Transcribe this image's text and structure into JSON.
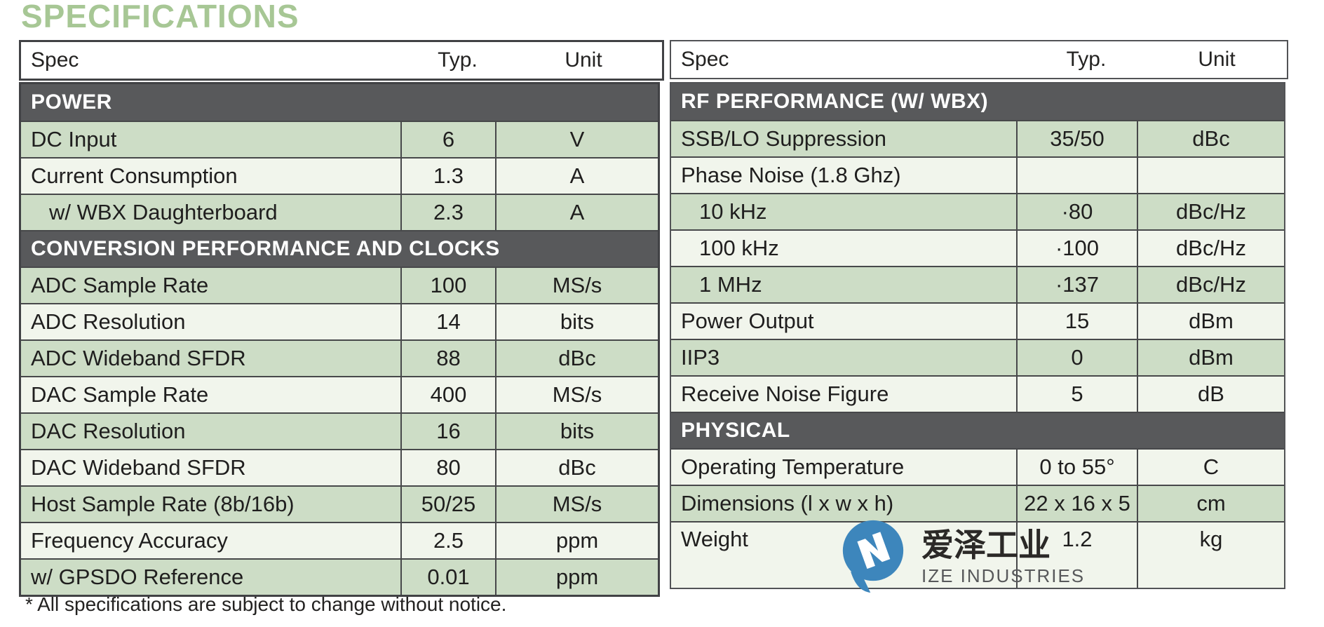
{
  "title": "SPECIFICATIONS",
  "columns": [
    "Spec",
    "Typ.",
    "Unit"
  ],
  "footnote": "* All specifications are subject to change without notice.",
  "colors": {
    "title_green": "#a7c795",
    "row_green": "#cdddc6",
    "row_light": "#f1f5ec",
    "section_bar": "#58595b",
    "grid_line": "#47484a",
    "logo_blue": "#3d86bc"
  },
  "tables": [
    {
      "id": "left",
      "sections": [
        {
          "header": "POWER",
          "rows": [
            {
              "spec": "DC Input",
              "typ": "6",
              "unit": "V",
              "shade": "green",
              "indent": false
            },
            {
              "spec": "Current Consumption",
              "typ": "1.3",
              "unit": "A",
              "shade": "light",
              "indent": false
            },
            {
              "spec": "w/ WBX Daughterboard",
              "typ": "2.3",
              "unit": "A",
              "shade": "green",
              "indent": true
            }
          ]
        },
        {
          "header": "CONVERSION PERFORMANCE AND CLOCKS",
          "rows": [
            {
              "spec": "ADC Sample Rate",
              "typ": "100",
              "unit": "MS/s",
              "shade": "green",
              "indent": false
            },
            {
              "spec": "ADC Resolution",
              "typ": "14",
              "unit": "bits",
              "shade": "light",
              "indent": false
            },
            {
              "spec": "ADC Wideband SFDR",
              "typ": "88",
              "unit": "dBc",
              "shade": "green",
              "indent": false
            },
            {
              "spec": "DAC Sample Rate",
              "typ": "400",
              "unit": "MS/s",
              "shade": "light",
              "indent": false
            },
            {
              "spec": "DAC Resolution",
              "typ": "16",
              "unit": "bits",
              "shade": "green",
              "indent": false
            },
            {
              "spec": "DAC Wideband SFDR",
              "typ": "80",
              "unit": "dBc",
              "shade": "light",
              "indent": false
            },
            {
              "spec": "Host Sample Rate (8b/16b)",
              "typ": "50/25",
              "unit": "MS/s",
              "shade": "green",
              "indent": false
            },
            {
              "spec": "Frequency Accuracy",
              "typ": "2.5",
              "unit": "ppm",
              "shade": "light",
              "indent": false
            },
            {
              "spec": "w/ GPSDO Reference",
              "typ": "0.01",
              "unit": "ppm",
              "shade": "green",
              "indent": false
            }
          ]
        }
      ]
    },
    {
      "id": "right",
      "sections": [
        {
          "header": "RF PERFORMANCE (W/ WBX)",
          "rows": [
            {
              "spec": "SSB/LO Suppression",
              "typ": "35/50",
              "unit": "dBc",
              "shade": "green",
              "indent": false
            },
            {
              "spec": "Phase Noise (1.8 Ghz)",
              "typ": "",
              "unit": "",
              "shade": "light",
              "indent": false
            },
            {
              "spec": "10 kHz",
              "typ": "·80",
              "unit": "dBc/Hz",
              "shade": "green",
              "indent": true
            },
            {
              "spec": "100 kHz",
              "typ": "·100",
              "unit": "dBc/Hz",
              "shade": "light",
              "indent": true
            },
            {
              "spec": "1 MHz",
              "typ": "·137",
              "unit": "dBc/Hz",
              "shade": "green",
              "indent": true
            },
            {
              "spec": "Power Output",
              "typ": "15",
              "unit": "dBm",
              "shade": "light",
              "indent": false
            },
            {
              "spec": "IIP3",
              "typ": "0",
              "unit": "dBm",
              "shade": "green",
              "indent": false
            },
            {
              "spec": "Receive Noise Figure",
              "typ": "5",
              "unit": "dB",
              "shade": "light",
              "indent": false
            }
          ]
        },
        {
          "header": "PHYSICAL",
          "rows": [
            {
              "spec": "Operating Temperature",
              "typ": "0 to 55°",
              "unit": "C",
              "shade": "light",
              "indent": false
            },
            {
              "spec": "Dimensions (l x w x h)",
              "typ": "22 x 16 x 5",
              "unit": "cm",
              "shade": "green",
              "indent": false
            },
            {
              "spec": "Weight",
              "typ": "1.2",
              "unit": "kg",
              "shade": "light",
              "indent": false,
              "tall": true
            }
          ]
        }
      ]
    }
  ],
  "watermark": {
    "cjk": "爱泽工业",
    "latin": "IZE INDUSTRIES"
  }
}
